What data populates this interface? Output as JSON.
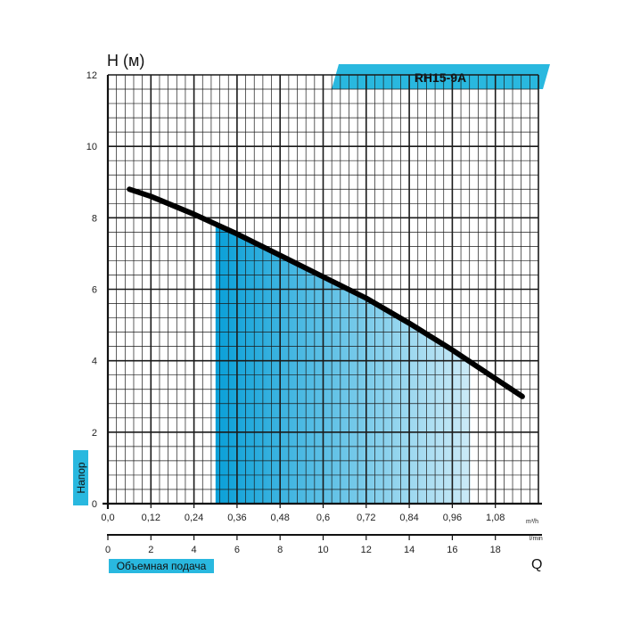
{
  "chart_data": {
    "type": "line",
    "model": "RH15-9A",
    "ylabel_top": "H (м)",
    "ylabel_side": "Напор",
    "xlabel_box": "Объемная подача",
    "q_label": "Q",
    "unit_m3h": "m³/h",
    "unit_lmin": "l/min",
    "ylim": [
      0,
      12
    ],
    "y_ticks": [
      0,
      2,
      4,
      6,
      8,
      10,
      12
    ],
    "xlim_m3h": [
      0,
      1.2
    ],
    "x_ticks_m3h": [
      "0,0",
      "0,12",
      "0,24",
      "0,36",
      "0,48",
      "0,6",
      "0,72",
      "0,84",
      "0,96",
      "1,08"
    ],
    "x_ticks_lmin": [
      "0",
      "2",
      "4",
      "6",
      "8",
      "10",
      "12",
      "14",
      "16",
      "18"
    ],
    "grid": true,
    "series": [
      {
        "x_m3h": [
          0.06,
          0.12,
          0.24,
          0.36,
          0.48,
          0.6,
          0.72,
          0.84,
          0.96,
          1.02,
          1.155
        ],
        "y": [
          8.8,
          8.6,
          8.1,
          7.55,
          6.95,
          6.35,
          5.75,
          5.05,
          4.3,
          3.9,
          3.0
        ],
        "color": "#000000"
      }
    ],
    "working_range_m3h": [
      0.3,
      1.01
    ],
    "colors": {
      "accent": "#29b8df",
      "fill_dark": "#0aa0d8",
      "fill_light": "#cbeaf7",
      "grid": "#1a1a1a"
    }
  }
}
